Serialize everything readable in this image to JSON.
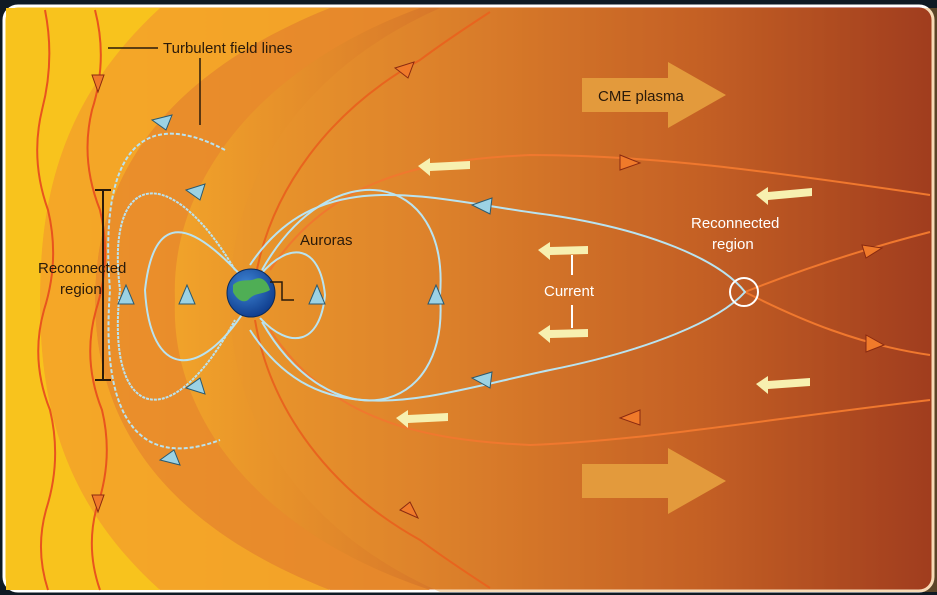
{
  "labels": {
    "turbulent": "Turbulent field lines",
    "cme": "CME plasma",
    "auroras": "Auroras",
    "reconnected_left_1": "Reconnected",
    "reconnected_left_2": "region",
    "reconnected_right_1": "Reconnected",
    "reconnected_right_2": "region",
    "current": "Current"
  },
  "colors": {
    "field_line": "#b9e3f0",
    "solar_line": "#e8541e",
    "arrow_orange": "#f07a2a",
    "arrow_pale": "#f7f0b0",
    "big_arrow": "#e39a3c"
  }
}
